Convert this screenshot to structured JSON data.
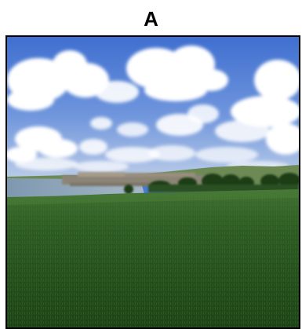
{
  "figure": {
    "panel_label": "A"
  },
  "photo": {
    "subject": "landscape-photo",
    "colors": {
      "sky_top": "#3f6fd0",
      "sky_bottom": "#9ab6e6",
      "cloud": "#ffffff",
      "water": "#8aa3b8",
      "field_far": "#3a6a2a",
      "field_near": "#1f4a18",
      "trees": "#1e3d17",
      "town": "#8c8476"
    }
  }
}
